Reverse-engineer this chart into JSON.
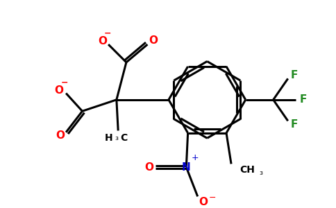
{
  "bg_color": "#ffffff",
  "bond_color": "#000000",
  "red_color": "#ff0000",
  "blue_color": "#0000cc",
  "green_color": "#228B22",
  "lw": 2.2,
  "xlim": [
    0,
    10
  ],
  "ylim": [
    0,
    6.2
  ]
}
